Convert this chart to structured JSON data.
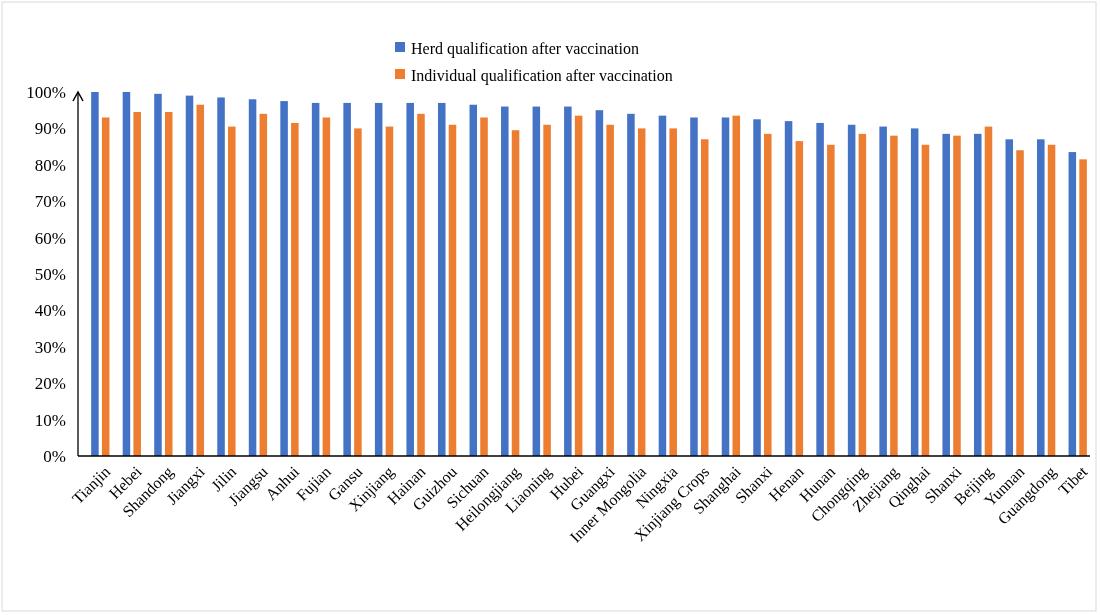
{
  "chart_data": {
    "type": "bar",
    "categories": [
      "Tianjin",
      "Hebei",
      "Shandong",
      "Jiangxi",
      "Jilin",
      "Jiangsu",
      "Anhui",
      "Fujian",
      "Gansu",
      "Xinjiang",
      "Hainan",
      "Guizhou",
      "Sichuan",
      "Heilongjiang",
      "Liaoning",
      "Hubei",
      "Guangxi",
      "Inner Mongolia",
      "Ningxia",
      "Xinjiang Crops",
      "Shanghai",
      "Shanxi",
      "Henan",
      "Hunan",
      "Chongqing",
      "Zhejiang",
      "Qinghai",
      "Shanxi",
      "Beijing",
      "Yunnan",
      "Guangdong",
      "Tibet"
    ],
    "series": [
      {
        "name": "Herd qualification after vaccination",
        "color": "#4472c4",
        "values": [
          100,
          100,
          99.5,
          99,
          98.5,
          98,
          97.5,
          97,
          97,
          97,
          97,
          97,
          96.5,
          96,
          96,
          96,
          95,
          94,
          93.5,
          93,
          93,
          92.5,
          92,
          91.5,
          91,
          90.5,
          90,
          88.5,
          88.5,
          87,
          87,
          83.5
        ]
      },
      {
        "name": "Individual qualification after vaccination",
        "color": "#ed7d31",
        "values": [
          93,
          94.5,
          94.5,
          96.5,
          90.5,
          94,
          91.5,
          93,
          90,
          90.5,
          94,
          91,
          93,
          89.5,
          91,
          93.5,
          91,
          90,
          90,
          87,
          93.5,
          88.5,
          86.5,
          85.5,
          88.5,
          88,
          85.5,
          88,
          90.5,
          84,
          85.5,
          81.5
        ]
      }
    ],
    "ylim": [
      0,
      100
    ],
    "yticks": [
      {
        "value": 0,
        "label": "0%"
      },
      {
        "value": 10,
        "label": "10%"
      },
      {
        "value": 20,
        "label": "20%"
      },
      {
        "value": 30,
        "label": "30%"
      },
      {
        "value": 40,
        "label": "40%"
      },
      {
        "value": 50,
        "label": "50%"
      },
      {
        "value": 60,
        "label": "60%"
      },
      {
        "value": 70,
        "label": "70%"
      },
      {
        "value": 80,
        "label": "80%"
      },
      {
        "value": 90,
        "label": "90%"
      },
      {
        "value": 100,
        "label": "100%"
      }
    ],
    "legend": "top"
  }
}
